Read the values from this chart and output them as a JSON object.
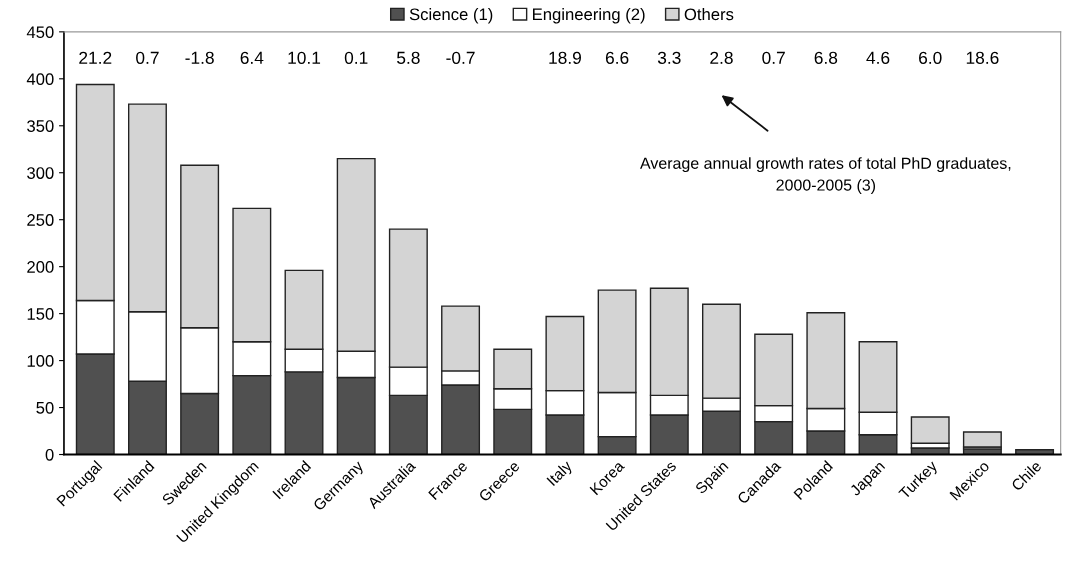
{
  "chart_data": {
    "type": "bar",
    "stacked": true,
    "categories": [
      "Portugal",
      "Finland",
      "Sweden",
      "United Kingdom",
      "Ireland",
      "Germany",
      "Australia",
      "France",
      "Greece",
      "Italy",
      "Korea",
      "United States",
      "Spain",
      "Canada",
      "Poland",
      "Japan",
      "Turkey",
      "Mexico",
      "Chile"
    ],
    "series": [
      {
        "name": "Science (1)",
        "color": "#505050",
        "values": [
          107,
          78,
          65,
          84,
          88,
          82,
          63,
          74,
          48,
          42,
          19,
          42,
          46,
          35,
          25,
          21,
          7,
          6,
          5
        ]
      },
      {
        "name": "Engineering (2)",
        "color": "#ffffff",
        "values": [
          57,
          74,
          70,
          36,
          24,
          28,
          30,
          15,
          22,
          26,
          47,
          21,
          14,
          17,
          24,
          24,
          5,
          2,
          null
        ]
      },
      {
        "name": "Others",
        "color": "#d4d4d4",
        "values": [
          230,
          221,
          173,
          142,
          84,
          205,
          147,
          69,
          42,
          79,
          109,
          114,
          100,
          76,
          102,
          75,
          28,
          16,
          null
        ]
      }
    ],
    "ylim": [
      0,
      450
    ],
    "yticks": [
      0,
      50,
      100,
      150,
      200,
      250,
      300,
      350,
      400,
      450
    ],
    "grid": false,
    "legend": "top",
    "annotations": [
      "21.2",
      "0.7",
      "-1.8",
      "6.4",
      "10.1",
      "0.1",
      "5.8",
      "-0.7",
      "18.9",
      "6.6",
      "3.3",
      "2.8",
      "0.7",
      "6.8",
      "4.6",
      "6.0",
      "18.6",
      "Average annual growth rates of total PhD graduates,\n2000-2005 (3)"
    ]
  }
}
